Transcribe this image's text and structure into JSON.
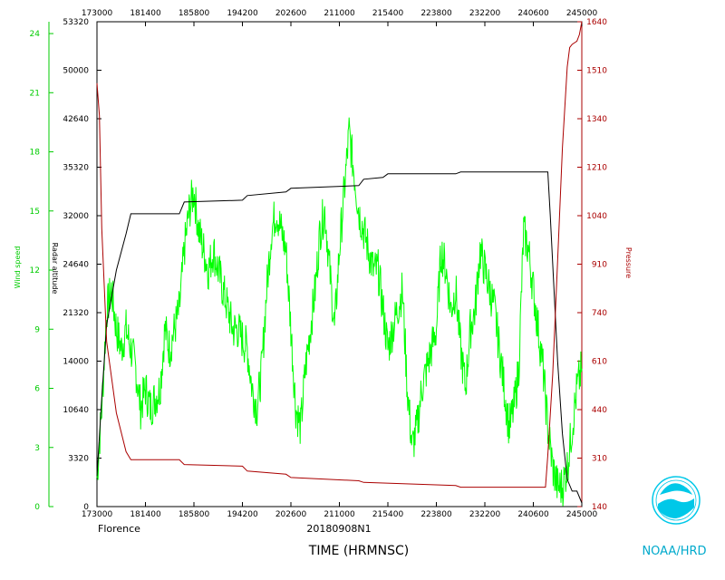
{
  "chart_data": {
    "type": "line",
    "storm_name": "Florence",
    "flight_id": "20180908N1",
    "xlabel": "TIME (HRMNSC)",
    "credit": "NOAA/HRD",
    "x_ticks": [
      "173000",
      "181400",
      "185800",
      "194200",
      "202600",
      "211000",
      "215400",
      "223800",
      "232200",
      "240600",
      "245000"
    ],
    "x_range": [
      "173000",
      "245000"
    ],
    "axes": {
      "wind_speed": {
        "label": "Wind speed",
        "ticks": [
          "0",
          "3",
          "6",
          "9",
          "12",
          "15",
          "18",
          "21",
          "24"
        ],
        "range": [
          0,
          24.6
        ],
        "color": "#00cc00"
      },
      "radar_altitude": {
        "label": "Radar altitude",
        "ticks": [
          "0",
          "3320",
          "10640",
          "14000",
          "21320",
          "24640",
          "32000",
          "35320",
          "42640",
          "50000",
          "53320"
        ],
        "range": [
          0,
          53320
        ],
        "color": "#000000"
      },
      "pressure": {
        "label": "Pressure",
        "ticks": [
          "140",
          "310",
          "440",
          "610",
          "740",
          "910",
          "1040",
          "1210",
          "1340",
          "1510",
          "1640"
        ],
        "range": [
          140,
          1640
        ],
        "color": "#aa0000"
      }
    },
    "series": [
      {
        "name": "Wind speed",
        "axis": "wind_speed",
        "color": "#00ff00",
        "x_frac": [
          0.0,
          0.01,
          0.02,
          0.03,
          0.04,
          0.05,
          0.06,
          0.07,
          0.08,
          0.09,
          0.1,
          0.11,
          0.12,
          0.13,
          0.14,
          0.15,
          0.16,
          0.17,
          0.18,
          0.19,
          0.2,
          0.21,
          0.22,
          0.23,
          0.24,
          0.25,
          0.26,
          0.27,
          0.28,
          0.29,
          0.3,
          0.31,
          0.32,
          0.33,
          0.34,
          0.35,
          0.36,
          0.37,
          0.38,
          0.39,
          0.4,
          0.41,
          0.42,
          0.43,
          0.44,
          0.45,
          0.46,
          0.47,
          0.48,
          0.49,
          0.5,
          0.51,
          0.52,
          0.53,
          0.54,
          0.55,
          0.56,
          0.57,
          0.58,
          0.59,
          0.6,
          0.61,
          0.62,
          0.63,
          0.64,
          0.65,
          0.66,
          0.67,
          0.68,
          0.69,
          0.7,
          0.71,
          0.72,
          0.73,
          0.74,
          0.75,
          0.76,
          0.77,
          0.78,
          0.79,
          0.8,
          0.81,
          0.82,
          0.83,
          0.84,
          0.85,
          0.86,
          0.87,
          0.88,
          0.89,
          0.9,
          0.91,
          0.92,
          0.93,
          0.94,
          0.95,
          0.96,
          0.97,
          0.98,
          0.99,
          1.0
        ],
        "values": [
          1.5,
          5,
          10,
          11,
          9,
          8,
          9,
          8,
          7,
          5,
          6,
          5,
          5.5,
          6,
          9,
          8,
          9,
          10,
          13,
          15,
          16,
          14,
          13,
          12,
          13,
          12,
          11,
          10,
          9,
          9,
          8.5,
          8,
          6,
          5,
          7,
          11,
          14,
          15,
          14,
          13,
          9,
          5,
          4,
          7,
          9,
          11,
          14,
          15,
          12,
          9,
          13,
          16,
          19,
          17,
          15,
          14,
          13,
          12,
          12,
          10,
          8,
          9,
          10,
          11,
          6,
          3,
          4,
          6,
          7,
          8,
          9,
          13,
          12,
          10,
          11,
          8,
          6,
          9,
          10,
          13,
          12,
          11,
          10,
          8,
          6,
          4,
          5,
          7,
          14,
          13,
          11,
          9,
          7,
          4,
          2,
          1,
          1,
          2,
          4,
          6,
          7
        ]
      },
      {
        "name": "Radar altitude",
        "axis": "radar_altitude",
        "color": "#000000",
        "x_frac": [
          0.0,
          0.01,
          0.02,
          0.04,
          0.06,
          0.07,
          0.17,
          0.18,
          0.3,
          0.31,
          0.39,
          0.4,
          0.54,
          0.55,
          0.59,
          0.6,
          0.74,
          0.75,
          0.8,
          0.93,
          0.935,
          0.95,
          0.96,
          0.97,
          0.98,
          0.99,
          1.0
        ],
        "values": [
          3320,
          12000,
          20000,
          26000,
          30000,
          32200,
          32200,
          33500,
          33700,
          34200,
          34600,
          35000,
          35300,
          36000,
          36200,
          36600,
          36600,
          36800,
          36800,
          36800,
          32000,
          16000,
          8000,
          3000,
          1700,
          1700,
          400
        ]
      },
      {
        "name": "Pressure",
        "axis": "pressure",
        "color": "#aa0000",
        "x_frac": [
          0.0,
          0.005,
          0.01,
          0.02,
          0.04,
          0.06,
          0.07,
          0.17,
          0.18,
          0.3,
          0.31,
          0.39,
          0.4,
          0.54,
          0.55,
          0.74,
          0.75,
          0.8,
          0.925,
          0.93,
          0.94,
          0.95,
          0.96,
          0.97,
          0.975,
          0.98,
          0.99,
          0.995,
          1.0
        ],
        "values": [
          1450,
          1350,
          1000,
          650,
          430,
          310,
          285,
          285,
          270,
          265,
          250,
          240,
          230,
          220,
          215,
          205,
          200,
          200,
          200,
          300,
          550,
          900,
          1250,
          1500,
          1560,
          1570,
          1580,
          1600,
          1640
        ]
      }
    ]
  }
}
